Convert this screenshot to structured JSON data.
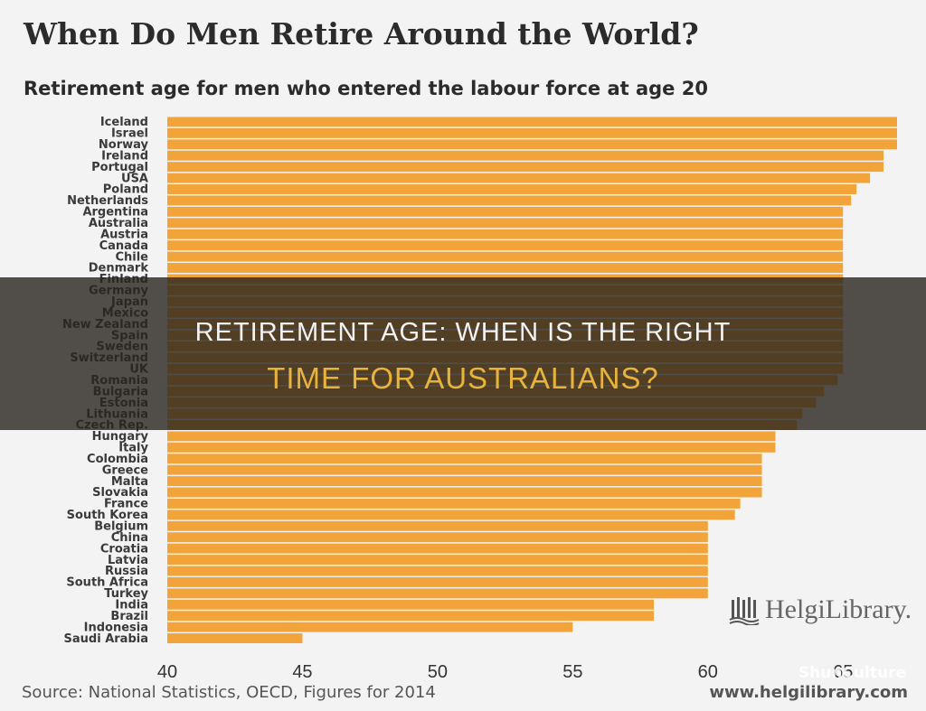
{
  "chart_data": {
    "type": "bar",
    "orientation": "horizontal",
    "title": "When Do Men Retire Around the World?",
    "subtitle": "Retirement age for men who entered the labour force at age 20",
    "categories": [
      "Iceland",
      "Israel",
      "Norway",
      "Ireland",
      "Portugal",
      "USA",
      "Poland",
      "Netherlands",
      "Argentina",
      "Australia",
      "Austria",
      "Canada",
      "Chile",
      "Denmark",
      "Finland",
      "Germany",
      "Japan",
      "Mexico",
      "New Zealand",
      "Spain",
      "Sweden",
      "Switzerland",
      "UK",
      "Romania",
      "Bulgaria",
      "Estonia",
      "Lithuania",
      "Czech Rep.",
      "Hungary",
      "Italy",
      "Colombia",
      "Greece",
      "Malta",
      "Slovakia",
      "France",
      "South Korea",
      "Belgium",
      "China",
      "Croatia",
      "Latvia",
      "Russia",
      "South Africa",
      "Turkey",
      "India",
      "Brazil",
      "Indonesia",
      "Saudi Arabia"
    ],
    "values": [
      67,
      67,
      67,
      66.5,
      66.5,
      66,
      65.5,
      65.3,
      65,
      65,
      65,
      65,
      65,
      65,
      65,
      65,
      65,
      65,
      65,
      65,
      65,
      65,
      65,
      64.8,
      64.3,
      64,
      63.5,
      63.3,
      62.5,
      62.5,
      62,
      62,
      62,
      62,
      61.2,
      61,
      60,
      60,
      60,
      60,
      60,
      60,
      60,
      58,
      58,
      55,
      45
    ],
    "xlim": [
      40,
      67
    ],
    "xticks": [
      "40",
      "45",
      "50",
      "55",
      "60",
      "65"
    ],
    "bar_color": "#f2a43a",
    "grid": false
  },
  "overlay": {
    "line1": "RETIREMENT AGE: WHEN IS THE RIGHT",
    "line2": "TIME FOR AUSTRALIANS?"
  },
  "logo": {
    "text": "HelgiLibrary."
  },
  "source": "Source: National Statistics, OECD, Figures for 2014",
  "site_url": "www.helgilibrary.com",
  "watermark": "ShunCulture"
}
